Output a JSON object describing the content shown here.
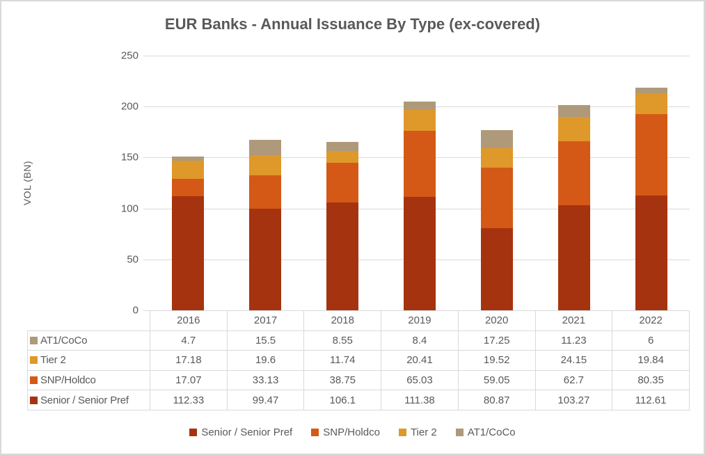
{
  "chart_data": {
    "type": "bar",
    "stacked": true,
    "title": "EUR Banks - Annual Issuance By Type (ex-covered)",
    "ylabel": "VOL (BN)",
    "xlabel": "",
    "categories": [
      "2016",
      "2017",
      "2018",
      "2019",
      "2020",
      "2021",
      "2022"
    ],
    "series": [
      {
        "name": "Senior / Senior Pref",
        "color": "#a6330f",
        "values": [
          112.33,
          99.47,
          106.1,
          111.38,
          80.87,
          103.27,
          112.61
        ]
      },
      {
        "name": "SNP/Holdco",
        "color": "#d45916",
        "values": [
          17.07,
          33.13,
          38.75,
          65.03,
          59.05,
          62.7,
          80.35
        ]
      },
      {
        "name": "Tier 2",
        "color": "#df982a",
        "values": [
          17.18,
          19.6,
          11.74,
          20.41,
          19.52,
          24.15,
          19.84
        ]
      },
      {
        "name": "AT1/CoCo",
        "color": "#ae9a7a",
        "values": [
          4.7,
          15.5,
          8.55,
          8.4,
          17.25,
          11.23,
          6
        ]
      }
    ],
    "ylim": [
      0,
      250
    ],
    "yticks": [
      0,
      50,
      100,
      150,
      200,
      250
    ],
    "grid": true,
    "gridline_color": "#d9d9d9",
    "text_color": "#595959",
    "legend_position": "bottom",
    "legend_order": [
      "Senior / Senior Pref",
      "SNP/Holdco",
      "Tier 2",
      "AT1/CoCo"
    ],
    "data_table_row_order": [
      "AT1/CoCo",
      "Tier 2",
      "SNP/Holdco",
      "Senior / Senior Pref"
    ]
  }
}
